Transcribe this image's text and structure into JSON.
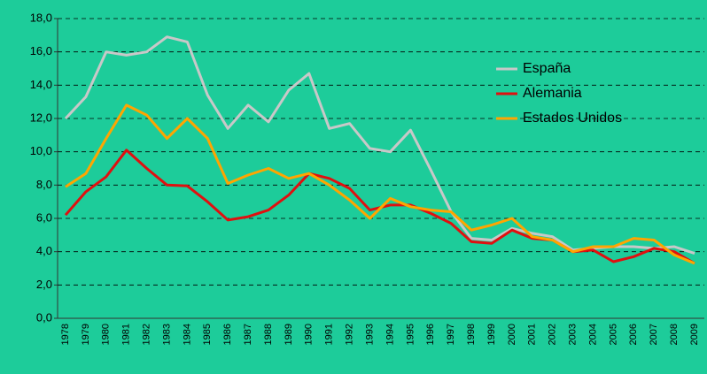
{
  "chart_data": {
    "type": "line",
    "categories": [
      "1978",
      "1979",
      "1980",
      "1981",
      "1982",
      "1983",
      "1984",
      "1985",
      "1986",
      "1987",
      "1988",
      "1989",
      "1990",
      "1991",
      "1992",
      "1993",
      "1994",
      "1995",
      "1996",
      "1997",
      "1998",
      "1999",
      "2000",
      "2001",
      "2002",
      "2003",
      "2004",
      "2005",
      "2006",
      "2007",
      "2008",
      "2009"
    ],
    "series": [
      {
        "name": "España",
        "color": "#c8c8c8",
        "values": [
          12.0,
          13.3,
          16.0,
          15.8,
          16.0,
          16.9,
          16.6,
          13.4,
          11.4,
          12.8,
          11.8,
          13.7,
          14.7,
          11.4,
          11.7,
          10.2,
          10.0,
          11.3,
          8.9,
          6.4,
          4.8,
          4.7,
          5.4,
          5.1,
          4.9,
          4.1,
          4.2,
          4.3,
          4.3,
          4.2,
          4.3,
          3.9
        ]
      },
      {
        "name": "Alemania",
        "color": "#e01010",
        "values": [
          6.2,
          7.6,
          8.5,
          10.1,
          9.0,
          8.0,
          7.95,
          7.0,
          5.9,
          6.1,
          6.5,
          7.4,
          8.7,
          8.4,
          7.8,
          6.5,
          6.8,
          6.8,
          6.3,
          5.7,
          4.6,
          4.5,
          5.3,
          4.8,
          4.7,
          4.0,
          4.1,
          3.4,
          3.7,
          4.2,
          4.0,
          3.3
        ]
      },
      {
        "name": "Estados Unidos",
        "color": "#ffa500",
        "values": [
          7.9,
          8.7,
          10.8,
          12.8,
          12.2,
          10.8,
          12.0,
          10.8,
          8.1,
          8.6,
          9.0,
          8.4,
          8.7,
          8.0,
          7.1,
          6.0,
          7.2,
          6.7,
          6.5,
          6.4,
          5.3,
          5.6,
          6.0,
          4.9,
          4.7,
          4.0,
          4.3,
          4.3,
          4.8,
          4.7,
          3.8,
          3.3
        ]
      }
    ],
    "ylim": [
      0,
      18
    ],
    "yticks": [
      {
        "value": 0,
        "label": "0,0"
      },
      {
        "value": 2,
        "label": "2,0"
      },
      {
        "value": 4,
        "label": "4,0"
      },
      {
        "value": 6,
        "label": "6,0"
      },
      {
        "value": 8,
        "label": "8,0"
      },
      {
        "value": 10,
        "label": "10,0"
      },
      {
        "value": 12,
        "label": "12,0"
      },
      {
        "value": 14,
        "label": "14,0"
      },
      {
        "value": 16,
        "label": "16,0"
      },
      {
        "value": 18,
        "label": "18,0"
      }
    ],
    "grid": true,
    "legend": "upper right"
  }
}
